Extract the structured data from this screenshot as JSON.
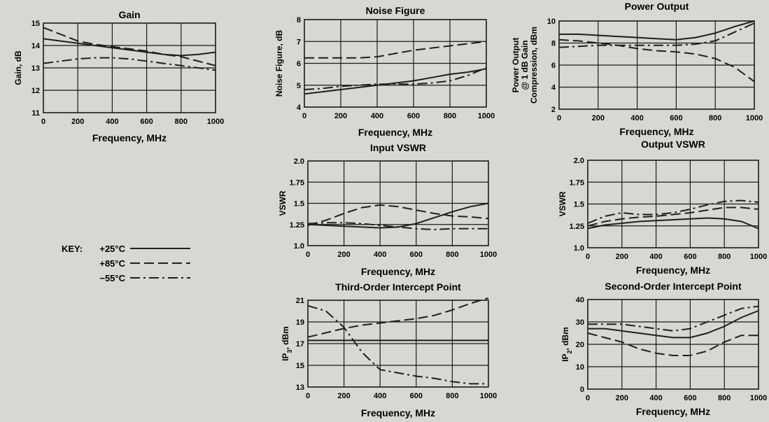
{
  "key": {
    "title": "KEY:",
    "entries": [
      {
        "label": "+25°C",
        "style": "solid"
      },
      {
        "label": "+85°C",
        "style": "dashed"
      },
      {
        "label": "−55°C",
        "style": "dashdot"
      }
    ]
  },
  "chart_data": [
    {
      "id": "gain",
      "type": "line",
      "title": "Gain",
      "xlabel": "Frequency, MHz",
      "ylabel": "Gain, dB",
      "xlim": [
        0,
        1000
      ],
      "ylim": [
        11,
        15
      ],
      "xticks": [
        0,
        200,
        400,
        600,
        800,
        1000
      ],
      "yticks": [
        11,
        12,
        13,
        14,
        15
      ],
      "x": [
        0,
        100,
        200,
        300,
        400,
        500,
        600,
        700,
        800,
        900,
        1000
      ],
      "series": [
        {
          "style": "solid",
          "values": [
            14.3,
            14.2,
            14.1,
            14.0,
            13.9,
            13.8,
            13.7,
            13.6,
            13.55,
            13.6,
            13.7
          ]
        },
        {
          "style": "dashed",
          "values": [
            14.8,
            14.5,
            14.2,
            14.05,
            13.95,
            13.85,
            13.75,
            13.6,
            13.5,
            13.3,
            13.1
          ]
        },
        {
          "style": "dashdot",
          "values": [
            13.2,
            13.3,
            13.4,
            13.45,
            13.45,
            13.4,
            13.3,
            13.2,
            13.1,
            13.0,
            12.9
          ]
        }
      ]
    },
    {
      "id": "noise",
      "type": "line",
      "title": "Noise Figure",
      "xlabel": "Frequency, MHz",
      "ylabel": "Noise Figure, dB",
      "xlim": [
        0,
        1000
      ],
      "ylim": [
        4,
        8
      ],
      "xticks": [
        0,
        200,
        400,
        600,
        800,
        1000
      ],
      "yticks": [
        4,
        5,
        6,
        7,
        8
      ],
      "x": [
        0,
        100,
        200,
        300,
        400,
        500,
        600,
        700,
        800,
        900,
        1000
      ],
      "series": [
        {
          "style": "solid",
          "values": [
            4.6,
            4.7,
            4.8,
            4.9,
            5.0,
            5.1,
            5.2,
            5.35,
            5.5,
            5.6,
            5.75
          ]
        },
        {
          "style": "dashed",
          "values": [
            6.25,
            6.25,
            6.25,
            6.25,
            6.3,
            6.45,
            6.6,
            6.7,
            6.8,
            6.9,
            7.0
          ]
        },
        {
          "style": "dashdot",
          "values": [
            4.8,
            4.85,
            4.95,
            5.0,
            5.05,
            5.05,
            5.05,
            5.1,
            5.2,
            5.45,
            5.8
          ]
        }
      ]
    },
    {
      "id": "power",
      "type": "line",
      "title": "Power Output",
      "xlabel": "Frequency, MHz",
      "ylabel": "Power Output @ 1 dB Gain Compression, dBm",
      "ylabel_lines": [
        "Power Output",
        "@ 1 dB Gain",
        "Compression, dBm"
      ],
      "xlim": [
        0,
        1000
      ],
      "ylim": [
        2,
        10
      ],
      "xticks": [
        0,
        200,
        400,
        600,
        800,
        1000
      ],
      "yticks": [
        2,
        4,
        6,
        8,
        10
      ],
      "x": [
        0,
        100,
        200,
        300,
        400,
        500,
        600,
        700,
        800,
        900,
        1000
      ],
      "series": [
        {
          "style": "solid",
          "values": [
            8.8,
            8.8,
            8.7,
            8.6,
            8.5,
            8.4,
            8.3,
            8.5,
            8.9,
            9.5,
            10.0
          ]
        },
        {
          "style": "dashed",
          "values": [
            8.3,
            8.2,
            8.0,
            7.8,
            7.5,
            7.3,
            7.2,
            7.0,
            6.6,
            5.8,
            4.5
          ]
        },
        {
          "style": "dashdot",
          "values": [
            7.6,
            7.7,
            7.8,
            7.8,
            7.8,
            7.8,
            7.8,
            7.9,
            8.2,
            9.0,
            9.8
          ]
        }
      ]
    },
    {
      "id": "input_vswr",
      "type": "line",
      "title": "Input VSWR",
      "xlabel": "Frequency, MHz",
      "ylabel": "VSWR",
      "xlim": [
        0,
        1000
      ],
      "ylim": [
        1.0,
        2.0
      ],
      "xticks": [
        0,
        200,
        400,
        600,
        800,
        1000
      ],
      "yticks": [
        1.0,
        1.25,
        1.5,
        1.75,
        2.0
      ],
      "ytick_labels": [
        "1.0",
        "1.25",
        "1.5",
        "1.75",
        "2.0"
      ],
      "x": [
        0,
        100,
        200,
        300,
        400,
        500,
        600,
        700,
        800,
        900,
        1000
      ],
      "series": [
        {
          "style": "solid",
          "values": [
            1.25,
            1.24,
            1.23,
            1.22,
            1.21,
            1.22,
            1.26,
            1.33,
            1.4,
            1.46,
            1.5
          ]
        },
        {
          "style": "dashed",
          "values": [
            1.24,
            1.3,
            1.38,
            1.45,
            1.48,
            1.46,
            1.42,
            1.38,
            1.35,
            1.34,
            1.32
          ]
        },
        {
          "style": "dashdot",
          "values": [
            1.26,
            1.27,
            1.27,
            1.26,
            1.24,
            1.22,
            1.2,
            1.19,
            1.2,
            1.2,
            1.2
          ]
        }
      ]
    },
    {
      "id": "output_vswr",
      "type": "line",
      "title": "Output VSWR",
      "xlabel": "Frequency, MHz",
      "ylabel": "VSWR",
      "xlim": [
        0,
        1000
      ],
      "ylim": [
        1.0,
        2.0
      ],
      "xticks": [
        0,
        200,
        400,
        600,
        800,
        1000
      ],
      "yticks": [
        1.0,
        1.25,
        1.5,
        1.75,
        2.0
      ],
      "ytick_labels": [
        "1.0",
        "1.25",
        "1.5",
        "1.75",
        "2.0"
      ],
      "x": [
        0,
        100,
        200,
        300,
        400,
        500,
        600,
        700,
        800,
        900,
        1000
      ],
      "series": [
        {
          "style": "solid",
          "values": [
            1.22,
            1.26,
            1.28,
            1.3,
            1.31,
            1.32,
            1.33,
            1.34,
            1.33,
            1.3,
            1.22
          ]
        },
        {
          "style": "dashed",
          "values": [
            1.25,
            1.3,
            1.33,
            1.35,
            1.36,
            1.38,
            1.4,
            1.43,
            1.46,
            1.46,
            1.44
          ]
        },
        {
          "style": "dashdot",
          "values": [
            1.28,
            1.36,
            1.4,
            1.38,
            1.38,
            1.4,
            1.44,
            1.49,
            1.53,
            1.54,
            1.52
          ]
        }
      ]
    },
    {
      "id": "ip3",
      "type": "line",
      "title": "Third-Order Intercept Point",
      "xlabel": "Frequency, MHz",
      "ylabel": "IP3, dBm",
      "ylabel_main": "IP",
      "ylabel_sub": "3",
      "ylabel_rest": ", dBm",
      "xlim": [
        0,
        1000
      ],
      "ylim": [
        13,
        21
      ],
      "xticks": [
        0,
        200,
        400,
        600,
        800,
        1000
      ],
      "yticks": [
        13,
        15,
        17,
        19,
        21
      ],
      "x": [
        0,
        100,
        200,
        300,
        400,
        500,
        600,
        700,
        800,
        900,
        1000
      ],
      "series": [
        {
          "style": "solid",
          "values": [
            17.3,
            17.3,
            17.3,
            17.3,
            17.3,
            17.3,
            17.3,
            17.3,
            17.3,
            17.3,
            17.3
          ]
        },
        {
          "style": "dashed",
          "values": [
            17.6,
            18.0,
            18.4,
            18.7,
            18.9,
            19.1,
            19.3,
            19.6,
            20.1,
            20.7,
            21.2
          ]
        },
        {
          "style": "dashdot",
          "values": [
            20.5,
            20.0,
            18.5,
            16.2,
            14.6,
            14.3,
            14.0,
            13.8,
            13.5,
            13.3,
            13.3
          ]
        }
      ]
    },
    {
      "id": "ip2",
      "type": "line",
      "title": "Second-Order Intercept Point",
      "xlabel": "Frequency, MHz",
      "ylabel": "IP2, dBm",
      "ylabel_main": "IP",
      "ylabel_sub": "2",
      "ylabel_rest": ", dBm",
      "xlim": [
        0,
        1000
      ],
      "ylim": [
        0,
        40
      ],
      "xticks": [
        0,
        200,
        400,
        600,
        800,
        1000
      ],
      "yticks": [
        0,
        10,
        20,
        30,
        40
      ],
      "x": [
        0,
        100,
        200,
        300,
        400,
        500,
        600,
        700,
        800,
        900,
        1000
      ],
      "series": [
        {
          "style": "solid",
          "values": [
            27,
            27,
            26,
            25,
            24,
            23,
            23,
            25,
            28,
            32,
            35
          ]
        },
        {
          "style": "dashed",
          "values": [
            25,
            23,
            21,
            18,
            16,
            15,
            15,
            17,
            21,
            24,
            24
          ]
        },
        {
          "style": "dashdot",
          "values": [
            29,
            29,
            29,
            28,
            27,
            26,
            27,
            30,
            33,
            36,
            37
          ]
        }
      ]
    }
  ]
}
